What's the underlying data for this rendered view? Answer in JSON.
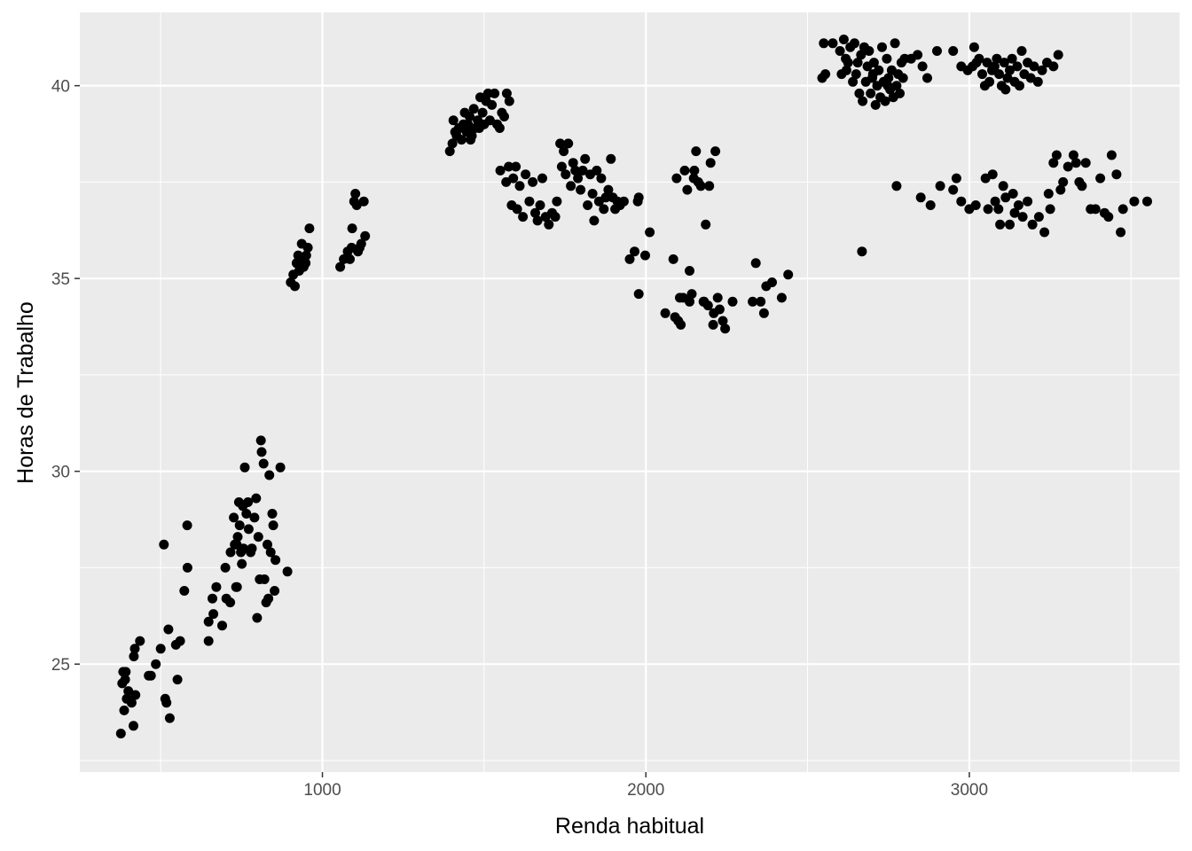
{
  "chart_data": {
    "type": "scatter",
    "title": "",
    "xlabel": "Renda habitual",
    "ylabel": "Horas de Trabalho",
    "xlim": [
      250,
      3650
    ],
    "ylim": [
      22.2,
      41.9
    ],
    "x_ticks": [
      1000,
      2000,
      3000
    ],
    "x_tick_labels": [
      "1000",
      "2000",
      "3000"
    ],
    "y_ticks": [
      25,
      30,
      35,
      40
    ],
    "y_tick_labels": [
      "25",
      "30",
      "35",
      "40"
    ],
    "grid": true,
    "legend": "none",
    "colors": {
      "panel": "#ebebeb",
      "grid": "#ffffff",
      "point": "#000000",
      "tick_text": "#4d4d4d"
    },
    "points": [
      [
        377,
        23.2
      ],
      [
        387,
        23.8
      ],
      [
        395,
        24.1
      ],
      [
        410,
        24.0
      ],
      [
        416,
        23.4
      ],
      [
        381,
        24.5
      ],
      [
        384,
        24.8
      ],
      [
        390,
        24.6
      ],
      [
        400,
        24.3
      ],
      [
        422,
        24.2
      ],
      [
        417,
        25.2
      ],
      [
        420,
        25.4
      ],
      [
        436,
        25.6
      ],
      [
        392,
        24.8
      ],
      [
        470,
        24.7
      ],
      [
        485,
        25.0
      ],
      [
        463,
        24.7
      ],
      [
        500,
        25.4
      ],
      [
        514,
        24.1
      ],
      [
        518,
        24.0
      ],
      [
        528,
        23.6
      ],
      [
        524,
        25.9
      ],
      [
        547,
        25.5
      ],
      [
        560,
        25.6
      ],
      [
        552,
        24.6
      ],
      [
        510,
        28.1
      ],
      [
        573,
        26.9
      ],
      [
        583,
        27.5
      ],
      [
        582,
        28.6
      ],
      [
        648,
        25.6
      ],
      [
        648,
        26.1
      ],
      [
        660,
        26.7
      ],
      [
        663,
        26.3
      ],
      [
        672,
        27.0
      ],
      [
        690,
        26.0
      ],
      [
        700,
        27.5
      ],
      [
        703,
        26.7
      ],
      [
        715,
        26.6
      ],
      [
        716,
        27.9
      ],
      [
        726,
        28.8
      ],
      [
        729,
        28.1
      ],
      [
        733,
        27.0
      ],
      [
        736,
        27.0
      ],
      [
        738,
        28.3
      ],
      [
        742,
        29.2
      ],
      [
        744,
        28.6
      ],
      [
        751,
        27.6
      ],
      [
        754,
        29.1
      ],
      [
        756,
        28.0
      ],
      [
        760,
        30.1
      ],
      [
        765,
        28.9
      ],
      [
        770,
        29.2
      ],
      [
        772,
        28.5
      ],
      [
        778,
        27.9
      ],
      [
        790,
        28.8
      ],
      [
        795,
        29.3
      ],
      [
        798,
        26.2
      ],
      [
        802,
        28.3
      ],
      [
        806,
        27.2
      ],
      [
        810,
        30.8
      ],
      [
        812,
        30.5
      ],
      [
        818,
        30.2
      ],
      [
        821,
        27.2
      ],
      [
        826,
        26.6
      ],
      [
        830,
        28.1
      ],
      [
        833,
        26.7
      ],
      [
        836,
        29.9
      ],
      [
        840,
        27.9
      ],
      [
        845,
        28.9
      ],
      [
        848,
        28.6
      ],
      [
        852,
        26.9
      ],
      [
        855,
        27.7
      ],
      [
        870,
        30.1
      ],
      [
        892,
        27.4
      ],
      [
        735,
        28.1
      ],
      [
        748,
        27.9
      ],
      [
        782,
        28.0
      ],
      [
        902,
        34.9
      ],
      [
        910,
        35.1
      ],
      [
        915,
        34.8
      ],
      [
        920,
        35.4
      ],
      [
        925,
        35.6
      ],
      [
        928,
        35.2
      ],
      [
        932,
        35.5
      ],
      [
        936,
        35.9
      ],
      [
        942,
        35.3
      ],
      [
        948,
        35.4
      ],
      [
        950,
        35.6
      ],
      [
        955,
        35.8
      ],
      [
        960,
        36.3
      ],
      [
        1055,
        35.3
      ],
      [
        1066,
        35.5
      ],
      [
        1078,
        35.7
      ],
      [
        1085,
        35.5
      ],
      [
        1090,
        35.8
      ],
      [
        1092,
        36.3
      ],
      [
        1098,
        37.0
      ],
      [
        1102,
        37.2
      ],
      [
        1106,
        36.9
      ],
      [
        1110,
        35.7
      ],
      [
        1115,
        35.8
      ],
      [
        1120,
        35.9
      ],
      [
        1128,
        37.0
      ],
      [
        1132,
        36.1
      ],
      [
        1394,
        38.3
      ],
      [
        1402,
        38.5
      ],
      [
        1405,
        39.1
      ],
      [
        1410,
        38.8
      ],
      [
        1415,
        38.7
      ],
      [
        1422,
        38.9
      ],
      [
        1430,
        38.6
      ],
      [
        1436,
        39.0
      ],
      [
        1440,
        39.3
      ],
      [
        1446,
        38.8
      ],
      [
        1450,
        39.0
      ],
      [
        1455,
        39.2
      ],
      [
        1462,
        38.7
      ],
      [
        1468,
        39.4
      ],
      [
        1472,
        38.9
      ],
      [
        1480,
        39.1
      ],
      [
        1488,
        39.7
      ],
      [
        1495,
        39.3
      ],
      [
        1500,
        39.0
      ],
      [
        1506,
        39.6
      ],
      [
        1512,
        39.8
      ],
      [
        1518,
        39.1
      ],
      [
        1524,
        39.5
      ],
      [
        1532,
        39.8
      ],
      [
        1540,
        39.0
      ],
      [
        1548,
        38.9
      ],
      [
        1555,
        39.3
      ],
      [
        1562,
        39.2
      ],
      [
        1570,
        39.8
      ],
      [
        1578,
        39.6
      ],
      [
        1485,
        38.9
      ],
      [
        1458,
        38.6
      ],
      [
        1425,
        38.9
      ],
      [
        1550,
        37.8
      ],
      [
        1568,
        37.5
      ],
      [
        1576,
        37.9
      ],
      [
        1585,
        36.9
      ],
      [
        1590,
        37.6
      ],
      [
        1598,
        37.9
      ],
      [
        1602,
        36.8
      ],
      [
        1610,
        37.4
      ],
      [
        1620,
        36.6
      ],
      [
        1628,
        37.7
      ],
      [
        1640,
        37.0
      ],
      [
        1650,
        37.5
      ],
      [
        1658,
        36.7
      ],
      [
        1665,
        36.5
      ],
      [
        1673,
        36.9
      ],
      [
        1680,
        37.6
      ],
      [
        1690,
        36.6
      ],
      [
        1700,
        36.4
      ],
      [
        1710,
        36.7
      ],
      [
        1720,
        36.6
      ],
      [
        1725,
        37.0
      ],
      [
        1735,
        38.5
      ],
      [
        1740,
        37.9
      ],
      [
        1746,
        38.3
      ],
      [
        1752,
        37.7
      ],
      [
        1760,
        38.5
      ],
      [
        1768,
        37.4
      ],
      [
        1775,
        38.0
      ],
      [
        1782,
        37.8
      ],
      [
        1790,
        37.6
      ],
      [
        1798,
        37.3
      ],
      [
        1805,
        37.8
      ],
      [
        1812,
        38.1
      ],
      [
        1820,
        36.9
      ],
      [
        1828,
        37.7
      ],
      [
        1835,
        37.2
      ],
      [
        1840,
        36.5
      ],
      [
        1848,
        37.8
      ],
      [
        1855,
        37.0
      ],
      [
        1862,
        37.6
      ],
      [
        1870,
        36.8
      ],
      [
        1876,
        37.1
      ],
      [
        1884,
        37.3
      ],
      [
        1892,
        38.1
      ],
      [
        1898,
        37.1
      ],
      [
        1905,
        36.8
      ],
      [
        1912,
        37.0
      ],
      [
        1920,
        36.9
      ],
      [
        1932,
        37.0
      ],
      [
        1950,
        35.5
      ],
      [
        1975,
        37.0
      ],
      [
        1978,
        37.1
      ],
      [
        1965,
        35.7
      ],
      [
        1978,
        34.6
      ],
      [
        1998,
        35.6
      ],
      [
        2012,
        36.2
      ],
      [
        2060,
        34.1
      ],
      [
        2085,
        35.5
      ],
      [
        2090,
        34.0
      ],
      [
        2095,
        37.6
      ],
      [
        2100,
        33.9
      ],
      [
        2108,
        33.8
      ],
      [
        2115,
        34.5
      ],
      [
        2120,
        37.8
      ],
      [
        2128,
        37.3
      ],
      [
        2135,
        35.2
      ],
      [
        2142,
        34.6
      ],
      [
        2148,
        37.6
      ],
      [
        2155,
        38.3
      ],
      [
        2162,
        37.5
      ],
      [
        2170,
        37.4
      ],
      [
        2178,
        34.4
      ],
      [
        2185,
        36.4
      ],
      [
        2192,
        34.3
      ],
      [
        2196,
        37.4
      ],
      [
        2200,
        38.0
      ],
      [
        2208,
        33.8
      ],
      [
        2215,
        38.3
      ],
      [
        2222,
        34.5
      ],
      [
        2228,
        34.2
      ],
      [
        2238,
        33.9
      ],
      [
        2245,
        33.7
      ],
      [
        2268,
        34.4
      ],
      [
        2330,
        34.4
      ],
      [
        2340,
        35.4
      ],
      [
        2355,
        34.4
      ],
      [
        2365,
        34.1
      ],
      [
        2372,
        34.8
      ],
      [
        2390,
        34.9
      ],
      [
        2420,
        34.5
      ],
      [
        2440,
        35.1
      ],
      [
        2135,
        34.4
      ],
      [
        2210,
        34.1
      ],
      [
        2150,
        37.8
      ],
      [
        2105,
        34.5
      ],
      [
        2180,
        34.4
      ],
      [
        2545,
        40.2
      ],
      [
        2550,
        41.1
      ],
      [
        2555,
        40.3
      ],
      [
        2578,
        41.1
      ],
      [
        2600,
        40.9
      ],
      [
        2605,
        40.3
      ],
      [
        2612,
        41.2
      ],
      [
        2618,
        40.7
      ],
      [
        2625,
        40.6
      ],
      [
        2632,
        41.0
      ],
      [
        2640,
        40.1
      ],
      [
        2645,
        41.1
      ],
      [
        2650,
        40.3
      ],
      [
        2655,
        40.6
      ],
      [
        2660,
        39.8
      ],
      [
        2665,
        40.8
      ],
      [
        2670,
        39.6
      ],
      [
        2675,
        41.0
      ],
      [
        2680,
        40.1
      ],
      [
        2685,
        40.5
      ],
      [
        2690,
        40.9
      ],
      [
        2695,
        39.8
      ],
      [
        2700,
        40.2
      ],
      [
        2705,
        40.6
      ],
      [
        2710,
        39.5
      ],
      [
        2715,
        40.0
      ],
      [
        2720,
        40.4
      ],
      [
        2725,
        39.7
      ],
      [
        2730,
        41.0
      ],
      [
        2735,
        40.1
      ],
      [
        2740,
        39.6
      ],
      [
        2745,
        40.7
      ],
      [
        2750,
        40.2
      ],
      [
        2755,
        39.9
      ],
      [
        2760,
        40.4
      ],
      [
        2765,
        39.7
      ],
      [
        2770,
        41.1
      ],
      [
        2775,
        40.0
      ],
      [
        2780,
        40.3
      ],
      [
        2785,
        39.8
      ],
      [
        2790,
        40.6
      ],
      [
        2795,
        40.2
      ],
      [
        2800,
        40.7
      ],
      [
        2820,
        40.7
      ],
      [
        2840,
        40.8
      ],
      [
        2855,
        40.5
      ],
      [
        2870,
        40.2
      ],
      [
        2900,
        40.9
      ],
      [
        2620,
        40.4
      ],
      [
        2702,
        40.3
      ],
      [
        2748,
        40.0
      ],
      [
        2668,
        35.7
      ],
      [
        2950,
        40.9
      ],
      [
        2975,
        40.5
      ],
      [
        2995,
        40.4
      ],
      [
        3010,
        40.5
      ],
      [
        3015,
        41.0
      ],
      [
        3022,
        40.6
      ],
      [
        3030,
        40.7
      ],
      [
        3040,
        40.3
      ],
      [
        3048,
        40.0
      ],
      [
        3055,
        40.6
      ],
      [
        3062,
        40.1
      ],
      [
        3070,
        40.4
      ],
      [
        3078,
        40.5
      ],
      [
        3085,
        40.7
      ],
      [
        3092,
        40.3
      ],
      [
        3100,
        40.0
      ],
      [
        3108,
        40.6
      ],
      [
        3112,
        39.9
      ],
      [
        3118,
        40.2
      ],
      [
        3125,
        40.4
      ],
      [
        3132,
        40.7
      ],
      [
        3140,
        40.1
      ],
      [
        3148,
        40.5
      ],
      [
        3155,
        40.0
      ],
      [
        3162,
        40.9
      ],
      [
        3170,
        40.3
      ],
      [
        3180,
        40.6
      ],
      [
        3190,
        40.2
      ],
      [
        3200,
        40.5
      ],
      [
        3212,
        40.1
      ],
      [
        3225,
        40.4
      ],
      [
        3240,
        40.6
      ],
      [
        3260,
        40.5
      ],
      [
        3275,
        40.8
      ],
      [
        2775,
        37.4
      ],
      [
        2850,
        37.1
      ],
      [
        2880,
        36.9
      ],
      [
        2910,
        37.4
      ],
      [
        2950,
        37.3
      ],
      [
        2960,
        37.6
      ],
      [
        2975,
        37.0
      ],
      [
        3000,
        36.8
      ],
      [
        3020,
        36.9
      ],
      [
        3050,
        37.6
      ],
      [
        3058,
        36.8
      ],
      [
        3072,
        37.7
      ],
      [
        3080,
        37.0
      ],
      [
        3090,
        36.8
      ],
      [
        3095,
        36.4
      ],
      [
        3105,
        37.4
      ],
      [
        3112,
        37.1
      ],
      [
        3125,
        36.4
      ],
      [
        3135,
        37.2
      ],
      [
        3140,
        36.7
      ],
      [
        3152,
        36.9
      ],
      [
        3165,
        36.6
      ],
      [
        3180,
        37.0
      ],
      [
        3195,
        36.4
      ],
      [
        3215,
        36.6
      ],
      [
        3232,
        36.2
      ],
      [
        3245,
        37.2
      ],
      [
        3250,
        36.8
      ],
      [
        3260,
        38.0
      ],
      [
        3270,
        38.2
      ],
      [
        3282,
        37.3
      ],
      [
        3290,
        37.5
      ],
      [
        3305,
        37.9
      ],
      [
        3322,
        38.2
      ],
      [
        3330,
        38.0
      ],
      [
        3340,
        37.5
      ],
      [
        3348,
        37.4
      ],
      [
        3360,
        38.0
      ],
      [
        3375,
        36.8
      ],
      [
        3390,
        36.8
      ],
      [
        3405,
        37.6
      ],
      [
        3418,
        36.7
      ],
      [
        3430,
        36.6
      ],
      [
        3440,
        38.2
      ],
      [
        3455,
        37.7
      ],
      [
        3468,
        36.2
      ],
      [
        3475,
        36.8
      ],
      [
        3510,
        37.0
      ],
      [
        3550,
        37.0
      ]
    ]
  }
}
